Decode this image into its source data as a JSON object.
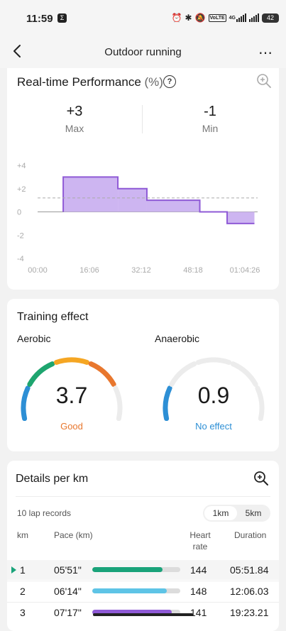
{
  "status_bar": {
    "time": "11:59",
    "icons": [
      "app-icon",
      "alarm-icon",
      "bluetooth-icon",
      "mute-icon",
      "volte-icon",
      "signal-icon",
      "signal-icon",
      "battery-icon"
    ],
    "network": "4G",
    "volte": "VoLTE",
    "battery": "42"
  },
  "header": {
    "title": "Outdoor running"
  },
  "performance": {
    "title": "Real-time Performance",
    "unit": "(%)",
    "max_value": "+3",
    "max_label": "Max",
    "min_value": "-1",
    "min_label": "Min"
  },
  "chart_data": {
    "type": "area",
    "title": "Real-time Performance (%)",
    "x_ticks": [
      "00:00",
      "16:06",
      "32:12",
      "48:18",
      "01:04:26"
    ],
    "y_ticks": [
      "+4",
      "+2",
      "0",
      "-2",
      "-4"
    ],
    "ylim": [
      -4,
      4
    ],
    "x_minutes_range": [
      0,
      64.43
    ],
    "steps": [
      {
        "from": 7.5,
        "to": 23.5,
        "value": 3
      },
      {
        "from": 23.5,
        "to": 32.0,
        "value": 2
      },
      {
        "from": 32.0,
        "to": 47.5,
        "value": 1
      },
      {
        "from": 47.5,
        "to": 55.5,
        "value": 0
      },
      {
        "from": 55.5,
        "to": 63.5,
        "value": -1
      }
    ],
    "average_line": 1.2,
    "color": "#8f5ad6",
    "fill": "#cdb5f1"
  },
  "training": {
    "title": "Training effect",
    "aerobic": {
      "label": "Aerobic",
      "value": "3.7",
      "level": 3.7,
      "status": "Good",
      "status_color": "#e8772e"
    },
    "anaerobic": {
      "label": "Anaerobic",
      "value": "0.9",
      "level": 0.9,
      "status": "No effect",
      "status_color": "#2d8fd5"
    },
    "scale_max": 5,
    "segment_colors": [
      "#2d8fd5",
      "#1ea56f",
      "#f5a623",
      "#e8772e",
      "#e8e8e8"
    ]
  },
  "details": {
    "title": "Details per km",
    "lap_count": "10 lap records",
    "toggle": [
      "1km",
      "5km"
    ],
    "columns": {
      "km": "km",
      "pace": "Pace (km)",
      "heart": "Heart rate",
      "duration": "Duration"
    },
    "rows": [
      {
        "km": "1",
        "pace": "05'51\"",
        "bar": 0.8,
        "bar_color": "#1aa37a",
        "heart": "144",
        "duration": "05:51.84"
      },
      {
        "km": "2",
        "pace": "06'14\"",
        "bar": 0.85,
        "bar_color": "#5ec4e6",
        "heart": "148",
        "duration": "12:06.03"
      },
      {
        "km": "3",
        "pace": "07'17\"",
        "bar": 0.9,
        "bar_color": "#8f5ad6",
        "heart": "141",
        "duration": "19:23.21"
      }
    ]
  }
}
